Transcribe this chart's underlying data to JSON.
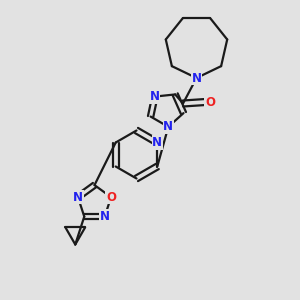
{
  "bg_color": "#e2e2e2",
  "bond_color": "#1a1a1a",
  "bond_width": 1.6,
  "N_color": "#2222ee",
  "O_color": "#ee2222",
  "font_size_atom": 8.5,
  "fig_width": 3.0,
  "fig_height": 3.0,
  "dpi": 100,
  "xlim": [
    0,
    10
  ],
  "ylim": [
    0,
    10
  ]
}
